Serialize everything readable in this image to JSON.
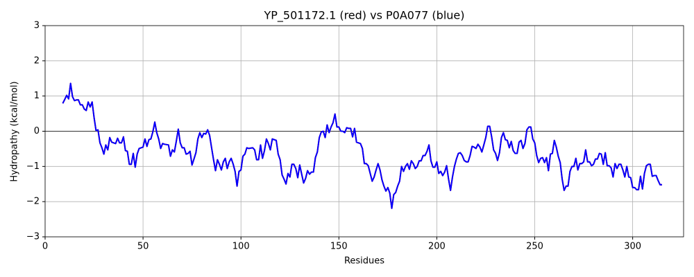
{
  "chart_data": {
    "type": "line",
    "title": "YP_501172.1 (red) vs P0A077 (blue)",
    "x_label": "Residues",
    "y_label": "Hydropathy (kcal/mol)",
    "x": [
      9,
      10,
      11,
      12,
      13,
      14,
      15,
      16,
      17,
      18,
      19,
      20,
      21,
      22,
      23,
      24,
      25,
      26,
      27,
      28,
      29,
      30,
      31,
      32,
      33,
      34,
      35,
      36,
      37,
      38,
      39,
      40,
      41,
      42,
      43,
      44,
      45,
      46,
      47,
      48,
      49,
      50,
      51,
      52,
      53,
      54,
      55,
      56,
      57,
      58,
      59,
      60,
      61,
      62,
      63,
      64,
      65,
      66,
      67,
      68,
      69,
      70,
      71,
      72,
      73,
      74,
      75,
      76,
      77,
      78,
      79,
      80,
      81,
      82,
      83,
      84,
      85,
      86,
      87,
      88,
      89,
      90,
      91,
      92,
      93,
      94,
      95,
      96,
      97,
      98,
      99,
      100,
      101,
      102,
      103,
      104,
      105,
      106,
      107,
      108,
      109,
      110,
      111,
      112,
      113,
      114,
      115,
      116,
      117,
      118,
      119,
      120,
      121,
      122,
      123,
      124,
      125,
      126,
      127,
      128,
      129,
      130,
      131,
      132,
      133,
      134,
      135,
      136,
      137,
      138,
      139,
      140,
      141,
      142,
      143,
      144,
      145,
      146,
      147,
      148,
      149,
      150,
      151,
      152,
      153,
      154,
      155,
      156,
      157,
      158,
      159,
      160,
      161,
      162,
      163,
      164,
      165,
      166,
      167,
      168,
      169,
      170,
      171,
      172,
      173,
      174,
      175,
      176,
      177,
      178,
      179,
      180,
      181,
      182,
      183,
      184,
      185,
      186,
      187,
      188,
      189,
      190,
      191,
      192,
      193,
      194,
      195,
      196,
      197,
      198,
      199,
      200,
      201,
      202,
      203,
      204,
      205,
      206,
      207,
      208,
      209,
      210,
      211,
      212,
      213,
      214,
      215,
      216,
      217,
      218,
      219,
      220,
      221,
      222,
      223,
      224,
      225,
      226,
      227,
      228,
      229,
      230,
      231,
      232,
      233,
      234,
      235,
      236,
      237,
      238,
      239,
      240,
      241,
      242,
      243,
      244,
      245,
      246,
      247,
      248,
      249,
      250,
      251,
      252,
      253,
      254,
      255,
      256,
      257,
      258,
      259,
      260,
      261,
      262,
      263,
      264,
      265,
      266,
      267,
      268,
      269,
      270,
      271,
      272,
      273,
      274,
      275,
      276,
      277,
      278,
      279,
      280,
      281,
      282,
      283,
      284,
      285,
      286,
      287,
      288,
      289,
      290,
      291,
      292,
      293,
      294,
      295,
      296,
      297,
      298,
      299,
      300,
      301,
      302,
      303,
      304,
      305,
      306,
      307,
      308,
      309,
      310,
      311,
      312,
      313,
      314,
      315
    ],
    "series": [
      {
        "name": "YP_501172.1",
        "color": "#ff0000",
        "values": [
          0.79,
          0.9,
          1.02,
          0.92,
          1.36,
          0.98,
          0.87,
          0.89,
          0.89,
          0.75,
          0.75,
          0.63,
          0.59,
          0.83,
          0.69,
          0.83,
          0.39,
          0.02,
          0.04,
          -0.33,
          -0.47,
          -0.65,
          -0.39,
          -0.53,
          -0.18,
          -0.31,
          -0.33,
          -0.35,
          -0.2,
          -0.33,
          -0.33,
          -0.16,
          -0.55,
          -0.57,
          -0.94,
          -0.94,
          -0.63,
          -1.02,
          -0.65,
          -0.49,
          -0.47,
          -0.45,
          -0.22,
          -0.43,
          -0.24,
          -0.22,
          -0.02,
          0.26,
          -0.04,
          -0.22,
          -0.49,
          -0.35,
          -0.37,
          -0.38,
          -0.39,
          -0.71,
          -0.53,
          -0.59,
          -0.28,
          0.06,
          -0.33,
          -0.47,
          -0.47,
          -0.65,
          -0.63,
          -0.57,
          -0.96,
          -0.79,
          -0.61,
          -0.22,
          -0.04,
          -0.18,
          -0.06,
          -0.08,
          0.04,
          -0.12,
          -0.47,
          -0.81,
          -1.12,
          -0.81,
          -0.94,
          -1.1,
          -0.87,
          -0.77,
          -1.06,
          -0.87,
          -0.77,
          -0.93,
          -1.14,
          -1.56,
          -1.14,
          -1.1,
          -0.71,
          -0.65,
          -0.47,
          -0.49,
          -0.48,
          -0.47,
          -0.53,
          -0.81,
          -0.81,
          -0.39,
          -0.77,
          -0.55,
          -0.22,
          -0.35,
          -0.53,
          -0.22,
          -0.24,
          -0.26,
          -0.65,
          -0.81,
          -1.24,
          -1.36,
          -1.5,
          -1.2,
          -1.3,
          -0.94,
          -0.94,
          -1.06,
          -1.32,
          -0.96,
          -1.22,
          -1.47,
          -1.34,
          -1.12,
          -1.22,
          -1.16,
          -1.16,
          -0.75,
          -0.59,
          -0.18,
          -0.02,
          0,
          -0.18,
          0.18,
          -0.04,
          0.12,
          0.24,
          0.49,
          0.12,
          0.12,
          0,
          0,
          -0.04,
          0.1,
          0.08,
          0.08,
          -0.16,
          0.08,
          -0.31,
          -0.33,
          -0.35,
          -0.49,
          -0.92,
          -0.92,
          -0.98,
          -1.2,
          -1.42,
          -1.3,
          -1.1,
          -0.92,
          -1.1,
          -1.38,
          -1.56,
          -1.7,
          -1.6,
          -1.76,
          -2.19,
          -1.8,
          -1.74,
          -1.56,
          -1.42,
          -1.0,
          -1.14,
          -1.0,
          -0.92,
          -1.08,
          -0.84,
          -0.92,
          -1.06,
          -1.0,
          -0.84,
          -0.84,
          -0.69,
          -0.69,
          -0.57,
          -0.39,
          -0.84,
          -1.02,
          -1.02,
          -0.87,
          -1.2,
          -1.14,
          -1.26,
          -1.16,
          -0.98,
          -1.36,
          -1.68,
          -1.3,
          -1.0,
          -0.79,
          -0.63,
          -0.61,
          -0.69,
          -0.83,
          -0.87,
          -0.87,
          -0.69,
          -0.43,
          -0.45,
          -0.49,
          -0.37,
          -0.45,
          -0.59,
          -0.39,
          -0.18,
          0.14,
          0.14,
          -0.16,
          -0.53,
          -0.63,
          -0.83,
          -0.61,
          -0.18,
          -0.04,
          -0.24,
          -0.26,
          -0.47,
          -0.29,
          -0.55,
          -0.63,
          -0.63,
          -0.31,
          -0.26,
          -0.49,
          -0.35,
          0.04,
          0.12,
          0.12,
          -0.22,
          -0.33,
          -0.69,
          -0.89,
          -0.77,
          -0.75,
          -0.89,
          -0.75,
          -1.12,
          -0.65,
          -0.63,
          -0.26,
          -0.45,
          -0.71,
          -0.89,
          -1.36,
          -1.68,
          -1.56,
          -1.56,
          -1.14,
          -1.0,
          -1.0,
          -0.77,
          -1.1,
          -0.92,
          -0.92,
          -0.87,
          -0.53,
          -0.87,
          -0.87,
          -0.98,
          -0.94,
          -0.79,
          -0.79,
          -0.63,
          -0.65,
          -0.94,
          -0.61,
          -0.98,
          -0.98,
          -1.04,
          -1.3,
          -0.92,
          -1.06,
          -0.94,
          -0.94,
          -1.1,
          -1.3,
          -1.0,
          -1.3,
          -1.32,
          -1.6,
          -1.6,
          -1.66,
          -1.66,
          -1.28,
          -1.64,
          -1.2,
          -0.98,
          -0.94,
          -0.94,
          -1.28,
          -1.26,
          -1.26,
          -1.4,
          -1.52,
          -1.52
        ]
      },
      {
        "name": "P0A077",
        "color": "#0000ff",
        "values": [
          0.79,
          0.9,
          1.02,
          0.92,
          1.36,
          0.98,
          0.87,
          0.89,
          0.89,
          0.75,
          0.75,
          0.63,
          0.59,
          0.83,
          0.69,
          0.83,
          0.39,
          0.02,
          0.04,
          -0.33,
          -0.47,
          -0.65,
          -0.39,
          -0.53,
          -0.18,
          -0.31,
          -0.33,
          -0.35,
          -0.2,
          -0.33,
          -0.33,
          -0.16,
          -0.55,
          -0.57,
          -0.94,
          -0.94,
          -0.63,
          -1.02,
          -0.65,
          -0.49,
          -0.47,
          -0.45,
          -0.22,
          -0.43,
          -0.24,
          -0.22,
          -0.02,
          0.26,
          -0.04,
          -0.22,
          -0.49,
          -0.35,
          -0.37,
          -0.38,
          -0.39,
          -0.71,
          -0.53,
          -0.59,
          -0.28,
          0.06,
          -0.33,
          -0.47,
          -0.47,
          -0.65,
          -0.63,
          -0.57,
          -0.96,
          -0.79,
          -0.61,
          -0.22,
          -0.04,
          -0.18,
          -0.06,
          -0.08,
          0.04,
          -0.12,
          -0.47,
          -0.81,
          -1.12,
          -0.81,
          -0.94,
          -1.1,
          -0.87,
          -0.77,
          -1.06,
          -0.87,
          -0.77,
          -0.93,
          -1.14,
          -1.56,
          -1.14,
          -1.1,
          -0.71,
          -0.65,
          -0.47,
          -0.49,
          -0.48,
          -0.47,
          -0.53,
          -0.81,
          -0.81,
          -0.39,
          -0.77,
          -0.55,
          -0.22,
          -0.35,
          -0.53,
          -0.22,
          -0.24,
          -0.26,
          -0.65,
          -0.81,
          -1.24,
          -1.36,
          -1.5,
          -1.2,
          -1.3,
          -0.94,
          -0.94,
          -1.06,
          -1.32,
          -0.96,
          -1.22,
          -1.47,
          -1.34,
          -1.12,
          -1.22,
          -1.16,
          -1.16,
          -0.75,
          -0.59,
          -0.18,
          -0.02,
          0,
          -0.18,
          0.18,
          -0.04,
          0.12,
          0.24,
          0.49,
          0.12,
          0.12,
          0,
          0,
          -0.04,
          0.1,
          0.08,
          0.08,
          -0.16,
          0.08,
          -0.31,
          -0.33,
          -0.35,
          -0.49,
          -0.92,
          -0.92,
          -0.98,
          -1.2,
          -1.42,
          -1.3,
          -1.1,
          -0.92,
          -1.1,
          -1.38,
          -1.56,
          -1.7,
          -1.6,
          -1.76,
          -2.19,
          -1.8,
          -1.74,
          -1.56,
          -1.42,
          -1.0,
          -1.14,
          -1.0,
          -0.92,
          -1.08,
          -0.84,
          -0.92,
          -1.06,
          -1.0,
          -0.84,
          -0.84,
          -0.69,
          -0.69,
          -0.57,
          -0.39,
          -0.84,
          -1.02,
          -1.02,
          -0.87,
          -1.2,
          -1.14,
          -1.26,
          -1.16,
          -0.98,
          -1.36,
          -1.68,
          -1.3,
          -1.0,
          -0.79,
          -0.63,
          -0.61,
          -0.69,
          -0.83,
          -0.87,
          -0.87,
          -0.69,
          -0.43,
          -0.45,
          -0.49,
          -0.37,
          -0.45,
          -0.59,
          -0.39,
          -0.18,
          0.14,
          0.14,
          -0.16,
          -0.53,
          -0.63,
          -0.83,
          -0.61,
          -0.18,
          -0.04,
          -0.24,
          -0.26,
          -0.47,
          -0.29,
          -0.55,
          -0.63,
          -0.63,
          -0.31,
          -0.26,
          -0.49,
          -0.35,
          0.04,
          0.12,
          0.12,
          -0.22,
          -0.33,
          -0.69,
          -0.89,
          -0.77,
          -0.75,
          -0.89,
          -0.75,
          -1.12,
          -0.65,
          -0.63,
          -0.26,
          -0.45,
          -0.71,
          -0.89,
          -1.36,
          -1.68,
          -1.56,
          -1.56,
          -1.14,
          -1.0,
          -1.0,
          -0.77,
          -1.1,
          -0.92,
          -0.92,
          -0.87,
          -0.53,
          -0.87,
          -0.87,
          -0.98,
          -0.94,
          -0.79,
          -0.79,
          -0.63,
          -0.65,
          -0.94,
          -0.61,
          -0.98,
          -0.98,
          -1.04,
          -1.3,
          -0.92,
          -1.06,
          -0.94,
          -0.94,
          -1.1,
          -1.3,
          -1.0,
          -1.3,
          -1.32,
          -1.6,
          -1.6,
          -1.66,
          -1.66,
          -1.28,
          -1.64,
          -1.2,
          -0.98,
          -0.94,
          -0.94,
          -1.28,
          -1.26,
          -1.26,
          -1.4,
          -1.52,
          -1.52
        ]
      }
    ],
    "xlim": [
      0,
      326
    ],
    "xticks": [
      0,
      50,
      100,
      150,
      200,
      250,
      300
    ],
    "ylim": [
      -3,
      3
    ],
    "yticks": [
      {
        "value": -3,
        "label": "−3"
      },
      {
        "value": -2,
        "label": "−2"
      },
      {
        "value": -1,
        "label": "−1"
      },
      0,
      1,
      2,
      3
    ],
    "hlines": [
      0
    ],
    "grid": true
  }
}
